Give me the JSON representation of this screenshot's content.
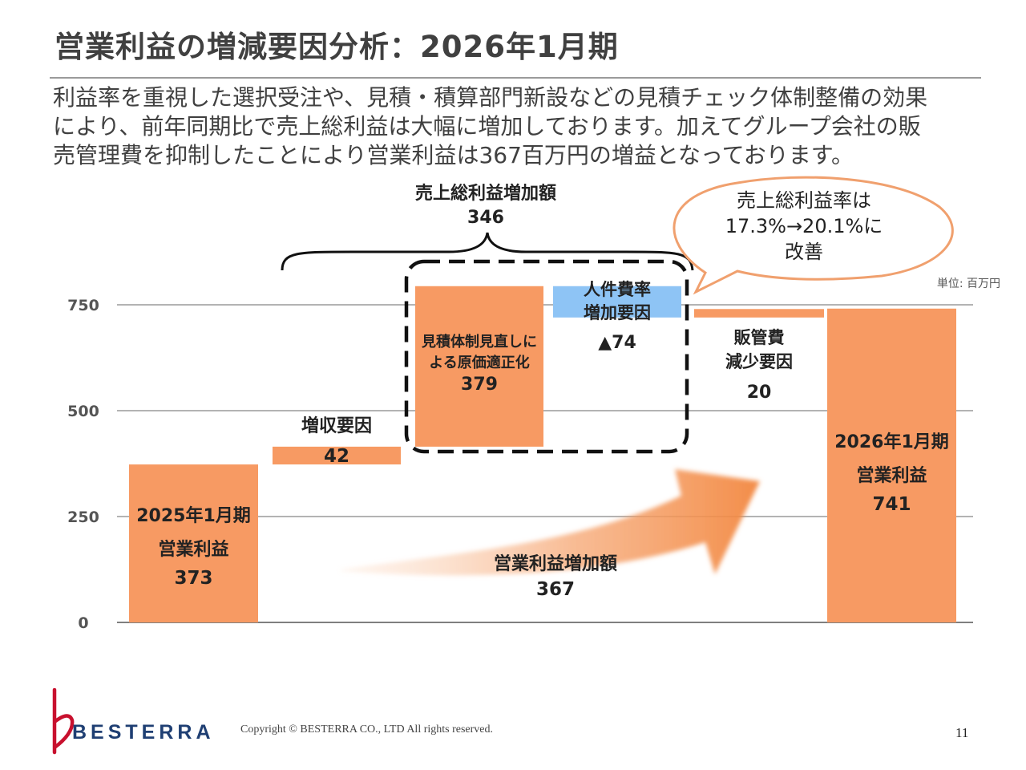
{
  "title": "営業利益の増減要因分析：2026年1月期",
  "intro_lines": [
    "利益率を重視した選択受注や、見積・積算部門新設などの見積チェック体制整備の効果",
    "により、前年同期比で売上総利益は大幅に増加しております。加えてグループ会社の販",
    "売管理費を抑制したことにより営業利益は367百万円の増益となっております。"
  ],
  "chart_data": {
    "type": "bar",
    "subtype": "waterfall",
    "unit_label": "単位: 百万円",
    "ylim": [
      0,
      750
    ],
    "y_ticks": [
      "0",
      "250",
      "500",
      "750"
    ],
    "y_tick_values": [
      0,
      250,
      500,
      750
    ],
    "gridlines": true,
    "colors": {
      "orange": "#F79A63",
      "blue": "#8EC4F5",
      "callout_border": "#F0A06E"
    },
    "bars": [
      {
        "label_lines": [
          "2025年1月期",
          "営業利益"
        ],
        "value_label": "373",
        "start": 0,
        "end": 373,
        "color": "orange"
      },
      {
        "label_lines": [
          "増収要因"
        ],
        "value_label": "42",
        "start": 373,
        "end": 415,
        "color": "orange"
      },
      {
        "label_lines": [
          "見積体制見直しに",
          "よる原価適正化"
        ],
        "value_label": "379",
        "start": 415,
        "end": 794,
        "color": "orange"
      },
      {
        "label_lines": [
          "人件費率",
          "増加要因"
        ],
        "value_label": "▲74",
        "start": 794,
        "end": 720,
        "color": "blue"
      },
      {
        "label_lines": [
          "販管費",
          "減少要因"
        ],
        "value_label": "20",
        "start": 720,
        "end": 740,
        "color": "orange"
      },
      {
        "label_lines": [
          "2026年1月期",
          "営業利益"
        ],
        "value_label": "741",
        "start": 0,
        "end": 741,
        "color": "orange"
      }
    ],
    "annotations": {
      "bracket_title": "売上総利益増加額",
      "bracket_value": "346",
      "callout_lines": [
        "売上総利益率は",
        "17.3%→20.1%に",
        "改善"
      ],
      "arrow_title": "営業利益増加額",
      "arrow_value": "367"
    }
  },
  "footer": {
    "logo_text": "BESTERRA",
    "copyright": "Copyright © BESTERRA CO., LTD All rights reserved.",
    "page_number": "11"
  }
}
